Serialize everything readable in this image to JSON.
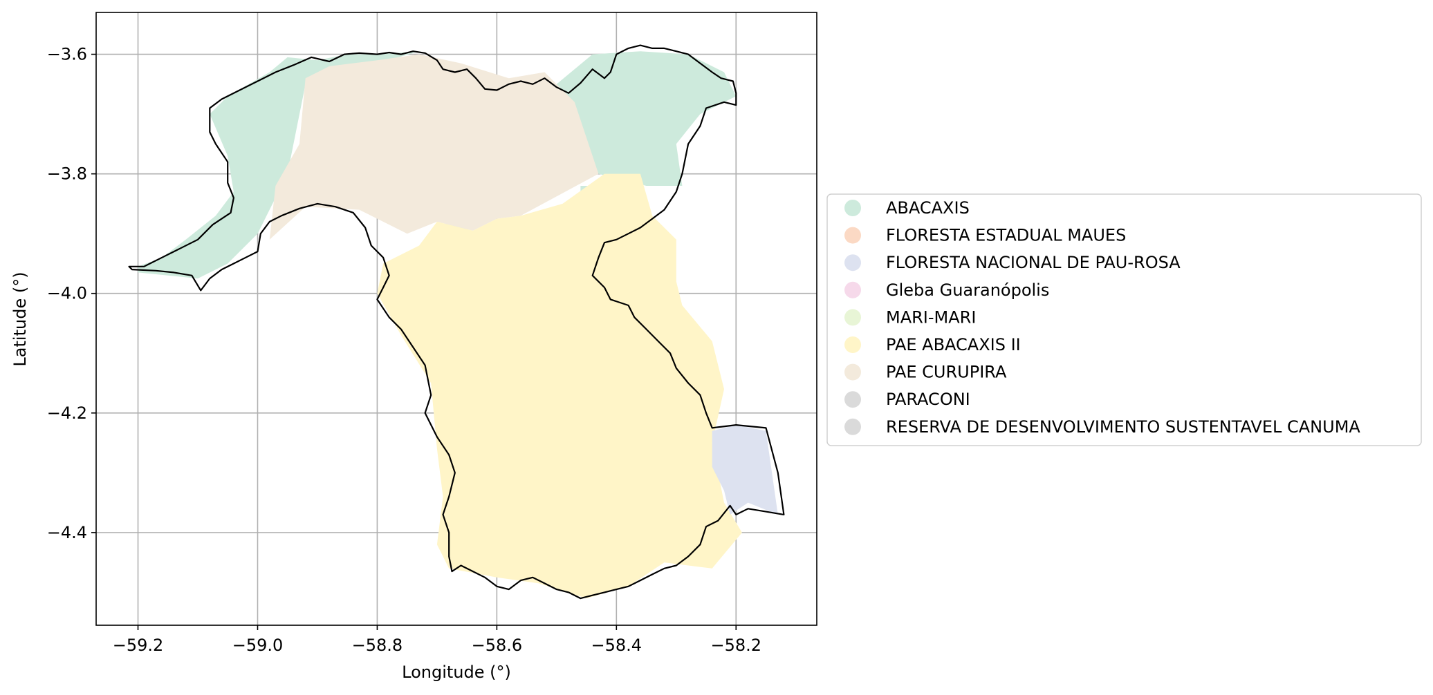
{
  "chart_data": {
    "type": "map",
    "xlabel": "Longitude (°)",
    "ylabel": "Latitude (°)",
    "xlim": [
      -59.27,
      -58.065
    ],
    "ylim": [
      -4.555,
      -3.53
    ],
    "xticks": [
      -59.2,
      -59.0,
      -58.8,
      -58.6,
      -58.4,
      -58.2
    ],
    "yticks": [
      -3.6,
      -3.8,
      -4.0,
      -4.2,
      -4.4
    ],
    "xtick_labels": [
      "−59.2",
      "−59.0",
      "−58.8",
      "−58.6",
      "−58.4",
      "−58.2"
    ],
    "ytick_labels": [
      "−3.6",
      "−3.8",
      "−4.0",
      "−4.2",
      "−4.4"
    ],
    "grid": true,
    "legend_position": "right",
    "legend": [
      {
        "label": "ABACAXIS",
        "color": "#cdeadc"
      },
      {
        "label": "FLORESTA ESTADUAL MAUES",
        "color": "#fbd9c4"
      },
      {
        "label": "FLORESTA NACIONAL DE PAU-ROSA",
        "color": "#dde2f0"
      },
      {
        "label": "Gleba Guaranópolis",
        "color": "#f6d9ea"
      },
      {
        "label": "MARI-MARI",
        "color": "#e8f5d6"
      },
      {
        "label": "PAE ABACAXIS II",
        "color": "#fff5c8"
      },
      {
        "label": "PAE CURUPIRA",
        "color": "#f3eadc"
      },
      {
        "label": "PARACONI",
        "color": "#dadada"
      },
      {
        "label": "RESERVA DE DESENVOLVIMENTO SUSTENTAVEL CANUMA",
        "color": "#dadada"
      }
    ],
    "regions": [
      {
        "name": "ABACAXIS",
        "color": "#cdeadc",
        "coords": [
          [
            -59.2,
            -3.955
          ],
          [
            -59.16,
            -3.94
          ],
          [
            -59.12,
            -3.91
          ],
          [
            -59.07,
            -3.87
          ],
          [
            -59.04,
            -3.83
          ],
          [
            -59.05,
            -3.77
          ],
          [
            -59.08,
            -3.7
          ],
          [
            -59.05,
            -3.67
          ],
          [
            -58.98,
            -3.63
          ],
          [
            -58.95,
            -3.605
          ],
          [
            -58.9,
            -3.61
          ],
          [
            -58.85,
            -3.6
          ],
          [
            -58.8,
            -3.6
          ],
          [
            -58.73,
            -3.595
          ],
          [
            -58.92,
            -3.65
          ],
          [
            -58.95,
            -3.8
          ],
          [
            -59.0,
            -3.9
          ],
          [
            -59.05,
            -3.95
          ],
          [
            -59.1,
            -3.975
          ],
          [
            -59.2,
            -3.965
          ]
        ]
      },
      {
        "name": "ABACAXIS",
        "color": "#cdeadc",
        "coords": [
          [
            -58.5,
            -3.65
          ],
          [
            -58.44,
            -3.6
          ],
          [
            -58.36,
            -3.595
          ],
          [
            -58.28,
            -3.6
          ],
          [
            -58.22,
            -3.63
          ],
          [
            -58.2,
            -3.67
          ],
          [
            -58.26,
            -3.7
          ],
          [
            -58.3,
            -3.75
          ],
          [
            -58.29,
            -3.82
          ],
          [
            -58.35,
            -3.82
          ],
          [
            -58.43,
            -3.8
          ],
          [
            -58.47,
            -3.72
          ]
        ]
      },
      {
        "name": "ABACAXIS",
        "color": "#cdeadc",
        "coords": [
          [
            -58.685,
            -3.88
          ],
          [
            -58.65,
            -3.88
          ],
          [
            -58.645,
            -3.935
          ],
          [
            -58.695,
            -3.935
          ]
        ]
      },
      {
        "name": "ABACAXIS",
        "color": "#cdeadc",
        "coords": [
          [
            -58.46,
            -3.82
          ],
          [
            -58.43,
            -3.82
          ],
          [
            -58.43,
            -3.84
          ],
          [
            -58.46,
            -3.84
          ]
        ]
      },
      {
        "name": "ABACAXIS",
        "color": "#cdeadc",
        "coords": [
          [
            -58.475,
            -3.88
          ],
          [
            -58.45,
            -3.88
          ],
          [
            -58.45,
            -3.91
          ],
          [
            -58.475,
            -3.91
          ]
        ]
      },
      {
        "name": "PAE CURUPIRA",
        "color": "#f3eadc",
        "coords": [
          [
            -58.92,
            -3.64
          ],
          [
            -58.88,
            -3.62
          ],
          [
            -58.8,
            -3.61
          ],
          [
            -58.73,
            -3.6
          ],
          [
            -58.66,
            -3.615
          ],
          [
            -58.58,
            -3.64
          ],
          [
            -58.52,
            -3.63
          ],
          [
            -58.47,
            -3.68
          ],
          [
            -58.45,
            -3.74
          ],
          [
            -58.43,
            -3.8
          ],
          [
            -58.56,
            -3.87
          ],
          [
            -58.6,
            -3.875
          ],
          [
            -58.64,
            -3.895
          ],
          [
            -58.7,
            -3.88
          ],
          [
            -58.75,
            -3.9
          ],
          [
            -58.83,
            -3.86
          ],
          [
            -58.92,
            -3.855
          ],
          [
            -58.98,
            -3.91
          ],
          [
            -58.97,
            -3.82
          ],
          [
            -58.93,
            -3.75
          ]
        ]
      },
      {
        "name": "PAE ABACAXIS II",
        "color": "#fff5c8",
        "coords": [
          [
            -58.42,
            -3.8
          ],
          [
            -58.36,
            -3.8
          ],
          [
            -58.34,
            -3.87
          ],
          [
            -58.3,
            -3.91
          ],
          [
            -58.3,
            -3.98
          ],
          [
            -58.29,
            -4.02
          ],
          [
            -58.24,
            -4.08
          ],
          [
            -58.22,
            -4.16
          ],
          [
            -58.24,
            -4.25
          ],
          [
            -58.22,
            -4.35
          ],
          [
            -58.19,
            -4.4
          ],
          [
            -58.24,
            -4.46
          ],
          [
            -58.32,
            -4.45
          ],
          [
            -58.38,
            -4.49
          ],
          [
            -58.45,
            -4.51
          ],
          [
            -58.53,
            -4.485
          ],
          [
            -58.6,
            -4.475
          ],
          [
            -58.68,
            -4.46
          ],
          [
            -58.7,
            -4.42
          ],
          [
            -58.69,
            -4.34
          ],
          [
            -58.7,
            -4.26
          ],
          [
            -58.71,
            -4.15
          ],
          [
            -58.76,
            -4.07
          ],
          [
            -58.8,
            -4.0
          ],
          [
            -58.79,
            -3.95
          ],
          [
            -58.73,
            -3.92
          ],
          [
            -58.7,
            -3.88
          ],
          [
            -58.64,
            -3.895
          ],
          [
            -58.6,
            -3.875
          ],
          [
            -58.56,
            -3.87
          ],
          [
            -58.49,
            -3.85
          ]
        ]
      },
      {
        "name": "FLORESTA NACIONAL DE PAU-ROSA",
        "color": "#dde2f0",
        "coords": [
          [
            -58.24,
            -4.23
          ],
          [
            -58.2,
            -4.22
          ],
          [
            -58.15,
            -4.23
          ],
          [
            -58.13,
            -4.37
          ],
          [
            -58.18,
            -4.35
          ],
          [
            -58.21,
            -4.37
          ],
          [
            -58.22,
            -4.33
          ],
          [
            -58.24,
            -4.29
          ]
        ]
      }
    ],
    "boundary": [
      [
        -59.215,
        -3.955
      ],
      [
        -59.19,
        -3.955
      ],
      [
        -59.16,
        -3.94
      ],
      [
        -59.13,
        -3.925
      ],
      [
        -59.1,
        -3.91
      ],
      [
        -59.075,
        -3.885
      ],
      [
        -59.045,
        -3.865
      ],
      [
        -59.04,
        -3.84
      ],
      [
        -59.05,
        -3.815
      ],
      [
        -59.05,
        -3.78
      ],
      [
        -59.07,
        -3.75
      ],
      [
        -59.08,
        -3.73
      ],
      [
        -59.08,
        -3.69
      ],
      [
        -59.06,
        -3.675
      ],
      [
        -59.03,
        -3.66
      ],
      [
        -59.0,
        -3.645
      ],
      [
        -58.97,
        -3.63
      ],
      [
        -58.94,
        -3.618
      ],
      [
        -58.91,
        -3.605
      ],
      [
        -58.88,
        -3.612
      ],
      [
        -58.855,
        -3.6
      ],
      [
        -58.83,
        -3.598
      ],
      [
        -58.8,
        -3.6
      ],
      [
        -58.78,
        -3.597
      ],
      [
        -58.76,
        -3.6
      ],
      [
        -58.74,
        -3.595
      ],
      [
        -58.72,
        -3.598
      ],
      [
        -58.7,
        -3.61
      ],
      [
        -58.69,
        -3.625
      ],
      [
        -58.67,
        -3.63
      ],
      [
        -58.65,
        -3.625
      ],
      [
        -58.635,
        -3.64
      ],
      [
        -58.62,
        -3.658
      ],
      [
        -58.6,
        -3.66
      ],
      [
        -58.58,
        -3.65
      ],
      [
        -58.56,
        -3.645
      ],
      [
        -58.54,
        -3.65
      ],
      [
        -58.52,
        -3.64
      ],
      [
        -58.5,
        -3.655
      ],
      [
        -58.48,
        -3.665
      ],
      [
        -58.46,
        -3.648
      ],
      [
        -58.44,
        -3.625
      ],
      [
        -58.42,
        -3.64
      ],
      [
        -58.41,
        -3.63
      ],
      [
        -58.4,
        -3.6
      ],
      [
        -58.38,
        -3.59
      ],
      [
        -58.36,
        -3.585
      ],
      [
        -58.34,
        -3.59
      ],
      [
        -58.32,
        -3.59
      ],
      [
        -58.3,
        -3.595
      ],
      [
        -58.28,
        -3.6
      ],
      [
        -58.26,
        -3.615
      ],
      [
        -58.24,
        -3.63
      ],
      [
        -58.225,
        -3.64
      ],
      [
        -58.205,
        -3.645
      ],
      [
        -58.2,
        -3.665
      ],
      [
        -58.2,
        -3.685
      ],
      [
        -58.22,
        -3.68
      ],
      [
        -58.25,
        -3.69
      ],
      [
        -58.26,
        -3.72
      ],
      [
        -58.28,
        -3.75
      ],
      [
        -58.29,
        -3.8
      ],
      [
        -58.3,
        -3.83
      ],
      [
        -58.32,
        -3.86
      ],
      [
        -58.34,
        -3.875
      ],
      [
        -58.36,
        -3.89
      ],
      [
        -58.38,
        -3.9
      ],
      [
        -58.4,
        -3.91
      ],
      [
        -58.42,
        -3.915
      ],
      [
        -58.43,
        -3.94
      ],
      [
        -58.44,
        -3.97
      ],
      [
        -58.42,
        -3.99
      ],
      [
        -58.41,
        -4.01
      ],
      [
        -58.38,
        -4.02
      ],
      [
        -58.37,
        -4.04
      ],
      [
        -58.35,
        -4.06
      ],
      [
        -58.33,
        -4.08
      ],
      [
        -58.31,
        -4.1
      ],
      [
        -58.3,
        -4.125
      ],
      [
        -58.28,
        -4.15
      ],
      [
        -58.26,
        -4.17
      ],
      [
        -58.25,
        -4.2
      ],
      [
        -58.24,
        -4.225
      ],
      [
        -58.2,
        -4.22
      ],
      [
        -58.15,
        -4.225
      ],
      [
        -58.13,
        -4.3
      ],
      [
        -58.12,
        -4.37
      ],
      [
        -58.15,
        -4.365
      ],
      [
        -58.18,
        -4.36
      ],
      [
        -58.2,
        -4.37
      ],
      [
        -58.21,
        -4.355
      ],
      [
        -58.23,
        -4.38
      ],
      [
        -58.25,
        -4.39
      ],
      [
        -58.26,
        -4.42
      ],
      [
        -58.28,
        -4.44
      ],
      [
        -58.3,
        -4.455
      ],
      [
        -58.32,
        -4.46
      ],
      [
        -58.34,
        -4.47
      ],
      [
        -58.36,
        -4.48
      ],
      [
        -58.38,
        -4.49
      ],
      [
        -58.4,
        -4.495
      ],
      [
        -58.42,
        -4.5
      ],
      [
        -58.44,
        -4.505
      ],
      [
        -58.46,
        -4.51
      ],
      [
        -58.48,
        -4.5
      ],
      [
        -58.5,
        -4.495
      ],
      [
        -58.52,
        -4.485
      ],
      [
        -58.54,
        -4.475
      ],
      [
        -58.56,
        -4.48
      ],
      [
        -58.58,
        -4.495
      ],
      [
        -58.6,
        -4.49
      ],
      [
        -58.62,
        -4.475
      ],
      [
        -58.64,
        -4.465
      ],
      [
        -58.66,
        -4.455
      ],
      [
        -58.675,
        -4.465
      ],
      [
        -58.68,
        -4.44
      ],
      [
        -58.68,
        -4.4
      ],
      [
        -58.69,
        -4.37
      ],
      [
        -58.68,
        -4.34
      ],
      [
        -58.67,
        -4.3
      ],
      [
        -58.68,
        -4.27
      ],
      [
        -58.7,
        -4.24
      ],
      [
        -58.72,
        -4.2
      ],
      [
        -58.71,
        -4.17
      ],
      [
        -58.72,
        -4.12
      ],
      [
        -58.74,
        -4.09
      ],
      [
        -58.76,
        -4.06
      ],
      [
        -58.78,
        -4.04
      ],
      [
        -58.8,
        -4.01
      ],
      [
        -58.79,
        -3.99
      ],
      [
        -58.78,
        -3.97
      ],
      [
        -58.79,
        -3.94
      ],
      [
        -58.81,
        -3.92
      ],
      [
        -58.82,
        -3.89
      ],
      [
        -58.84,
        -3.865
      ],
      [
        -58.87,
        -3.855
      ],
      [
        -58.9,
        -3.85
      ],
      [
        -58.93,
        -3.858
      ],
      [
        -58.96,
        -3.87
      ],
      [
        -58.98,
        -3.88
      ],
      [
        -58.995,
        -3.9
      ],
      [
        -59.0,
        -3.93
      ],
      [
        -59.02,
        -3.94
      ],
      [
        -59.04,
        -3.95
      ],
      [
        -59.06,
        -3.96
      ],
      [
        -59.08,
        -3.975
      ],
      [
        -59.095,
        -3.995
      ],
      [
        -59.11,
        -3.97
      ],
      [
        -59.14,
        -3.965
      ],
      [
        -59.17,
        -3.962
      ],
      [
        -59.21,
        -3.96
      ],
      [
        -59.215,
        -3.955
      ]
    ]
  }
}
